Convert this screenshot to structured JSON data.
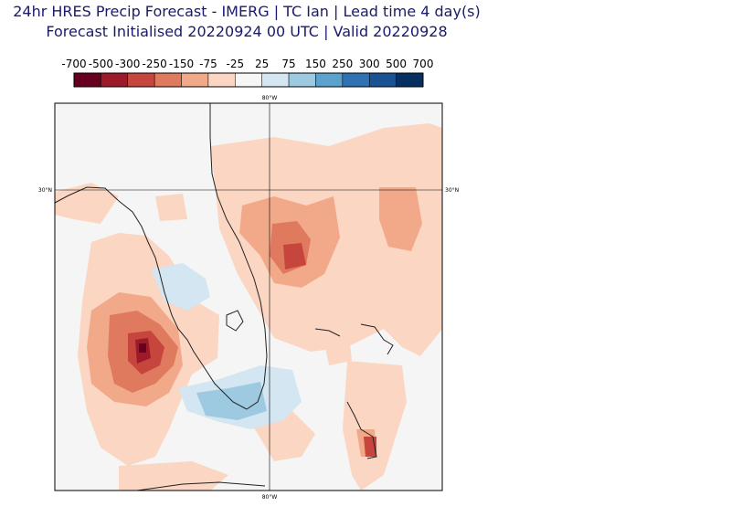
{
  "title_line1": "24hr HRES Precip Forecast - IMERG | TC Ian | Lead time 4 day(s)",
  "title_line2": "Forecast Initialised 20220924 00 UTC | Valid 20220928",
  "colorbar": {
    "ticks": [
      "-700",
      "-500",
      "-300",
      "-250",
      "-150",
      "-75",
      "-25",
      "25",
      "75",
      "150",
      "250",
      "300",
      "500",
      "700"
    ],
    "colors": [
      "#67001f",
      "#9e1a2b",
      "#c6453c",
      "#df7a5e",
      "#f1a98a",
      "#fbd6c3",
      "#f6f6f6",
      "#d3e6f1",
      "#9dcae1",
      "#5ba2cf",
      "#2f72b3",
      "#1b5293",
      "#053061"
    ]
  },
  "map": {
    "lon_label_top": "80°W",
    "lon_label_bottom": "80°W",
    "lat_label_left": "30°N",
    "lat_label_right": "30°N"
  }
}
